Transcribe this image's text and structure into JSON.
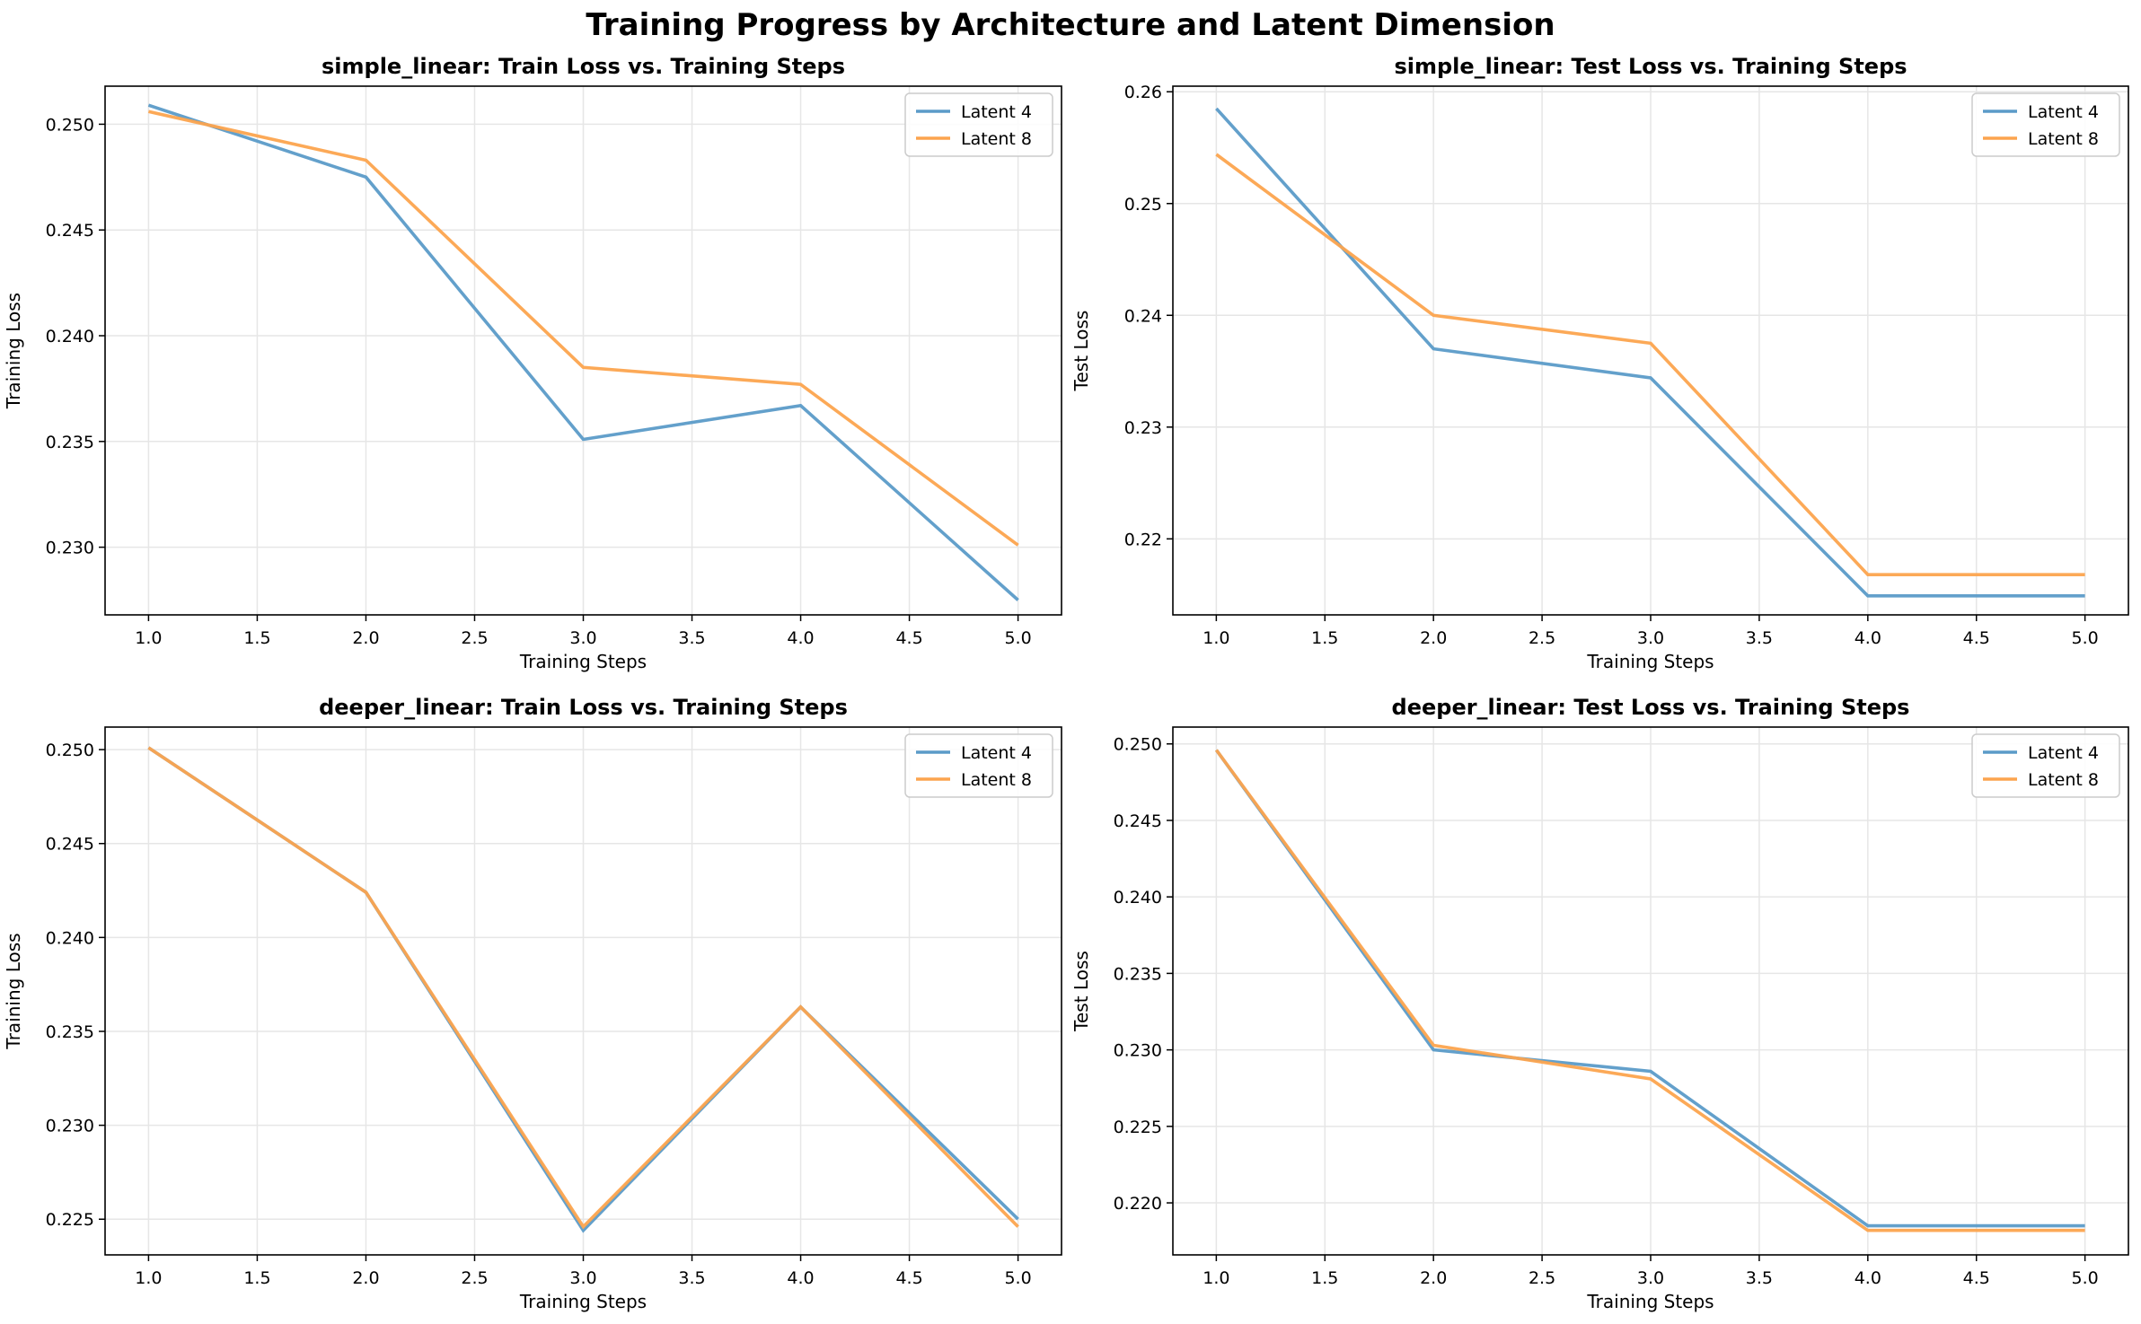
{
  "suptitle": "Training Progress by Architecture and Latent Dimension",
  "colors": {
    "latent4": "#5b9bc8",
    "latent8": "#fca44e",
    "grid": "#e6e6e6"
  },
  "chart_data": [
    {
      "type": "line",
      "title": "simple_linear: Train Loss vs. Training Steps",
      "xlabel": "Training Steps",
      "ylabel": "Training Loss",
      "xlim": [
        0.8,
        5.2
      ],
      "ylim": [
        0.2268,
        0.2518
      ],
      "xticks": [
        "1.0",
        "1.5",
        "2.0",
        "2.5",
        "3.0",
        "3.5",
        "4.0",
        "4.5",
        "5.0"
      ],
      "yticks": [
        "0.230",
        "0.235",
        "0.240",
        "0.245",
        "0.250"
      ],
      "grid": true,
      "legend": "top-right",
      "x": [
        1,
        2,
        3,
        4,
        5
      ],
      "series": [
        {
          "name": "Latent 4",
          "values": [
            0.2509,
            0.2475,
            0.2351,
            0.2367,
            0.2275
          ]
        },
        {
          "name": "Latent 8",
          "values": [
            0.2506,
            0.2483,
            0.2385,
            0.2377,
            0.2301
          ]
        }
      ]
    },
    {
      "type": "line",
      "title": "simple_linear: Test Loss vs. Training Steps",
      "xlabel": "Training Steps",
      "ylabel": "Test Loss",
      "xlim": [
        0.8,
        5.2
      ],
      "ylim": [
        0.2132,
        0.2605
      ],
      "xticks": [
        "1.0",
        "1.5",
        "2.0",
        "2.5",
        "3.0",
        "3.5",
        "4.0",
        "4.5",
        "5.0"
      ],
      "yticks": [
        "0.22",
        "0.23",
        "0.24",
        "0.25",
        "0.26"
      ],
      "grid": true,
      "legend": "top-right",
      "x": [
        1,
        2,
        3,
        4,
        5
      ],
      "series": [
        {
          "name": "Latent 4",
          "values": [
            0.2585,
            0.237,
            0.2344,
            0.2149,
            0.2149
          ]
        },
        {
          "name": "Latent 8",
          "values": [
            0.2544,
            0.24,
            0.2375,
            0.2168,
            0.2168
          ]
        }
      ]
    },
    {
      "type": "line",
      "title": "deeper_linear: Train Loss vs. Training Steps",
      "xlabel": "Training Steps",
      "ylabel": "Training Loss",
      "xlim": [
        0.8,
        5.2
      ],
      "ylim": [
        0.2231,
        0.2512
      ],
      "xticks": [
        "1.0",
        "1.5",
        "2.0",
        "2.5",
        "3.0",
        "3.5",
        "4.0",
        "4.5",
        "5.0"
      ],
      "yticks": [
        "0.225",
        "0.230",
        "0.235",
        "0.240",
        "0.245",
        "0.250"
      ],
      "grid": true,
      "legend": "top-right",
      "x": [
        1,
        2,
        3,
        4,
        5
      ],
      "series": [
        {
          "name": "Latent 4",
          "values": [
            0.2501,
            0.2424,
            0.2244,
            0.2363,
            0.225
          ]
        },
        {
          "name": "Latent 8",
          "values": [
            0.2501,
            0.2424,
            0.2246,
            0.2363,
            0.2246
          ]
        }
      ]
    },
    {
      "type": "line",
      "title": "deeper_linear: Test Loss vs. Training Steps",
      "xlabel": "Training Steps",
      "ylabel": "Test Loss",
      "xlim": [
        0.8,
        5.2
      ],
      "ylim": [
        0.2166,
        0.2511
      ],
      "xticks": [
        "1.0",
        "1.5",
        "2.0",
        "2.5",
        "3.0",
        "3.5",
        "4.0",
        "4.5",
        "5.0"
      ],
      "yticks": [
        "0.220",
        "0.225",
        "0.230",
        "0.235",
        "0.240",
        "0.245",
        "0.250"
      ],
      "grid": true,
      "legend": "top-right",
      "x": [
        1,
        2,
        3,
        4,
        5
      ],
      "series": [
        {
          "name": "Latent 4",
          "values": [
            0.2496,
            0.23,
            0.2286,
            0.2185,
            0.2185
          ]
        },
        {
          "name": "Latent 8",
          "values": [
            0.2496,
            0.2303,
            0.2281,
            0.2182,
            0.2182
          ]
        }
      ]
    }
  ]
}
